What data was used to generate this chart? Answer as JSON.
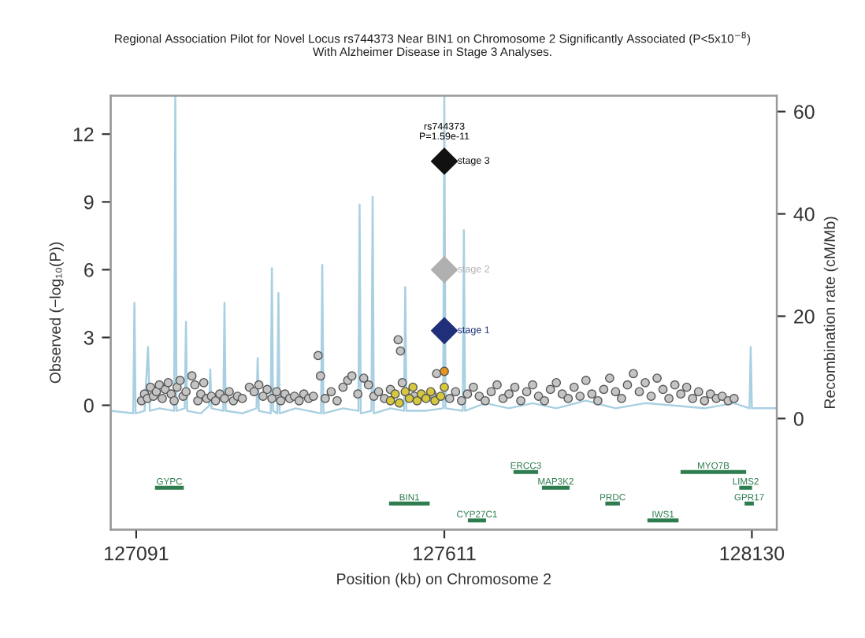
{
  "chart_data": {
    "type": "scatter",
    "title": "Regional Association Pilot for Novel Locus rs744373 Near BIN1 on Chromosome 2 Significantly Associated (P<5x10$^{−8}$)\nWith Alzheimer Disease in Stage 3 Analyses.",
    "xlabel": "Position (kb) on Chromosome 2",
    "ylabel": "Observed (−log₁₀(P))",
    "y2label": "Recombination rate (cM/Mb)",
    "xlim": [
      127048,
      128172
    ],
    "xticks": [
      127091,
      127611,
      128130
    ],
    "ylim": [
      -5.5,
      13.7
    ],
    "yticks": [
      0,
      3,
      6,
      9,
      12
    ],
    "y2lim": [
      -21.7,
      63.1
    ],
    "y2ticks": [
      0,
      20,
      40,
      60
    ],
    "grid": false,
    "legend": false,
    "annotations": [
      {
        "text": "rs744373\nP=1.59e-11",
        "x": 127611,
        "y": 10.8
      }
    ],
    "series": [
      {
        "type": "line",
        "axis": "y2",
        "color": "#a9d0e2",
        "x": [
          127048,
          127086,
          127088,
          127090,
          127105,
          127111,
          127114,
          127130,
          127155,
          127157,
          127159,
          127173,
          127175,
          127177,
          127200,
          127214,
          127216,
          127218,
          127238,
          127240,
          127242,
          127270,
          127294,
          127296,
          127298,
          127318,
          127320,
          127322,
          127329,
          127331,
          127333,
          127360,
          127403,
          127405,
          127407,
          127440,
          127466,
          127468,
          127470,
          127488,
          127490,
          127492,
          127520,
          127543,
          127545,
          127547,
          127580,
          127609,
          127611,
          127613,
          127642,
          127644,
          127646,
          127680,
          127720,
          127760,
          127800,
          127850,
          127900,
          127950,
          128000,
          128050,
          128100,
          128126,
          128128,
          128130,
          128172
        ],
        "values": [
          1.5,
          1.0,
          22.6,
          1.0,
          1.5,
          14,
          1.5,
          2,
          1.5,
          63,
          1.5,
          2,
          18.9,
          1.5,
          1,
          2.5,
          9.6,
          2,
          1.5,
          22.6,
          1.5,
          1,
          2,
          11.8,
          1.5,
          1,
          29.4,
          1.5,
          1,
          24.5,
          1,
          2,
          1,
          30,
          1,
          2,
          1.5,
          41.8,
          1,
          1.5,
          43.3,
          1,
          2,
          1.5,
          25.7,
          1.5,
          1.5,
          2,
          63,
          2,
          1.5,
          36.8,
          1.5,
          3,
          2,
          3,
          2,
          3.5,
          2,
          3,
          2.5,
          2,
          3,
          2,
          14,
          2,
          2
        ]
      },
      {
        "marker": "circle",
        "color": "#c4c4c4",
        "x": [
          127100,
          127105,
          127110,
          127115,
          127120,
          127125,
          127130,
          127135,
          127140,
          127145,
          127150,
          127155,
          127160,
          127165,
          127170,
          127175,
          127185,
          127190,
          127195,
          127200,
          127205,
          127210,
          127218,
          127225,
          127232,
          127240,
          127248,
          127255,
          127262,
          127270,
          127282,
          127290,
          127298,
          127305,
          127312,
          127320,
          127328,
          127335,
          127342,
          127350,
          127358,
          127366,
          127374,
          127382,
          127390,
          127398,
          127402,
          127410,
          127420,
          127430,
          127440,
          127448,
          127455,
          127465,
          127475,
          127483,
          127492,
          127500,
          127510,
          127520,
          127533,
          127537,
          127540,
          127560,
          127590,
          127598,
          127620,
          127630,
          127640,
          127650,
          127660,
          127670,
          127680,
          127690,
          127700,
          127710,
          127720,
          127730,
          127740,
          127750,
          127760,
          127770,
          127780,
          127790,
          127800,
          127810,
          127820,
          127830,
          127840,
          127850,
          127860,
          127870,
          127880,
          127890,
          127900,
          127910,
          127920,
          127930,
          127940,
          127950,
          127960,
          127970,
          127980,
          127990,
          128000,
          128010,
          128020,
          128030,
          128040,
          128050,
          128060,
          128070,
          128080,
          128090,
          128100
        ],
        "values": [
          0.2,
          0.5,
          0.3,
          0.8,
          0.4,
          0.6,
          0.9,
          0.3,
          0.7,
          1.0,
          0.5,
          0.2,
          0.8,
          1.1,
          0.4,
          0.6,
          1.3,
          0.9,
          0.2,
          0.5,
          1.0,
          0.3,
          0.4,
          0.2,
          0.5,
          0.3,
          0.6,
          0.2,
          0.4,
          0.3,
          0.8,
          0.6,
          0.9,
          0.4,
          0.7,
          0.3,
          0.6,
          0.2,
          0.5,
          0.3,
          0.4,
          0.2,
          0.5,
          0.3,
          0.4,
          2.2,
          1.3,
          0.3,
          0.6,
          0.2,
          0.8,
          1.1,
          1.3,
          0.5,
          1.2,
          0.9,
          0.4,
          0.6,
          0.3,
          0.7,
          2.9,
          2.4,
          1.0,
          0.4,
          0.5,
          1.4,
          0.3,
          0.6,
          0.2,
          0.5,
          0.8,
          0.4,
          0.2,
          0.6,
          0.9,
          0.3,
          0.5,
          0.8,
          0.2,
          0.6,
          0.9,
          0.4,
          0.2,
          0.7,
          1.0,
          0.5,
          0.3,
          0.8,
          0.4,
          1.1,
          0.5,
          0.2,
          0.7,
          1.2,
          0.6,
          0.3,
          0.9,
          1.4,
          0.6,
          1.0,
          0.4,
          1.2,
          0.7,
          0.3,
          0.9,
          0.5,
          0.8,
          0.3,
          0.6,
          0.2,
          0.5,
          0.3,
          0.4,
          0.2,
          0.3
        ]
      },
      {
        "marker": "circle",
        "color": "#d6c83c",
        "x": [
          127520,
          127528,
          127535,
          127545,
          127552,
          127558,
          127565,
          127572,
          127580,
          127588,
          127595,
          127605,
          127611
        ],
        "values": [
          0.2,
          0.5,
          0.1,
          0.6,
          0.3,
          0.8,
          0.2,
          0.5,
          0.3,
          0.6,
          0.2,
          0.4,
          0.8
        ]
      },
      {
        "marker": "circle",
        "color": "#e8951e",
        "x": [
          127611
        ],
        "values": [
          1.5
        ]
      },
      {
        "type": "scatter",
        "marker": "diamond",
        "name": "stage 1",
        "color": "#1f2f7a",
        "x": [
          127611
        ],
        "values": [
          3.3
        ]
      },
      {
        "type": "scatter",
        "marker": "diamond",
        "name": "stage 2",
        "color": "#b0b0b0",
        "x": [
          127611
        ],
        "values": [
          6.0
        ]
      },
      {
        "type": "scatter",
        "marker": "diamond",
        "name": "stage 3",
        "color": "#111111",
        "x": [
          127611
        ],
        "values": [
          10.8
        ]
      },
      {
        "type": "line",
        "name": "GYPC",
        "color": "#2e7d4f",
        "x": [
          127126,
          127168
        ],
        "values": [
          -3.65,
          -3.65
        ]
      },
      {
        "type": "line",
        "name": "BIN1",
        "color": "#2e7d4f",
        "x": [
          127521,
          127583
        ],
        "values": [
          -4.35,
          -4.35
        ]
      },
      {
        "type": "line",
        "name": "CYP27C1",
        "color": "#2e7d4f",
        "x": [
          127654,
          127678
        ],
        "values": [
          -5.1,
          -5.1
        ]
      },
      {
        "type": "line",
        "name": "ERCC3",
        "color": "#2e7d4f",
        "x": [
          127731,
          127766
        ],
        "values": [
          -2.95,
          -2.95
        ]
      },
      {
        "type": "line",
        "name": "MAP3K2",
        "color": "#2e7d4f",
        "x": [
          127779,
          127819
        ],
        "values": [
          -3.65,
          -3.65
        ]
      },
      {
        "type": "line",
        "name": "PRDC",
        "color": "#2e7d4f",
        "x": [
          127886,
          127904
        ],
        "values": [
          -4.35,
          -4.35
        ]
      },
      {
        "type": "line",
        "name": "IWS1",
        "color": "#2e7d4f",
        "x": [
          127957,
          128003
        ],
        "values": [
          -5.1,
          -5.1
        ]
      },
      {
        "type": "line",
        "name": "MYO7B",
        "color": "#2e7d4f",
        "x": [
          128013,
          128117
        ],
        "values": [
          -2.95,
          -2.95
        ]
      },
      {
        "type": "line",
        "name": "LIMS2",
        "color": "#2e7d4f",
        "x": [
          128112,
          128127
        ],
        "values": [
          -3.65,
          -3.65
        ]
      },
      {
        "type": "line",
        "name": "GPR17",
        "color": "#2e7d4f",
        "x": [
          128121,
          128130
        ],
        "values": [
          -4.35,
          -4.35
        ]
      }
    ]
  }
}
